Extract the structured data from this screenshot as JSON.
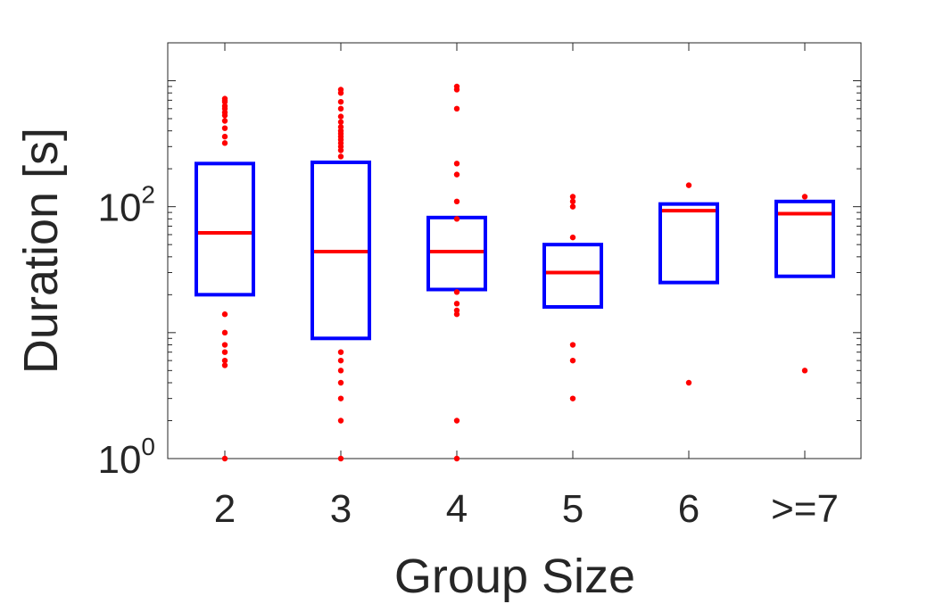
{
  "chart_data": {
    "type": "box",
    "xlabel": "Group Size",
    "ylabel": "Duration [s]",
    "y_scale": "log",
    "ylim": [
      1,
      2000
    ],
    "categories": [
      "2",
      "3",
      "4",
      "5",
      "6",
      ">=7"
    ],
    "y_ticks": [
      {
        "value": 1,
        "base": "10",
        "exp": "0"
      },
      {
        "value": 100,
        "base": "10",
        "exp": "2"
      }
    ],
    "boxes": [
      {
        "category": "2",
        "q1": 20,
        "median": 62,
        "q3": 220,
        "outliers": [
          1,
          5.5,
          6,
          7,
          8,
          10,
          14,
          320,
          360,
          420,
          480,
          530,
          560,
          600,
          630,
          680,
          700,
          720
        ]
      },
      {
        "category": "3",
        "q1": 9,
        "median": 44,
        "q3": 225,
        "outliers": [
          1,
          2,
          3,
          4,
          5,
          6,
          7,
          250,
          280,
          300,
          320,
          340,
          360,
          380,
          400,
          430,
          470,
          520,
          600,
          680,
          800,
          850
        ]
      },
      {
        "category": "4",
        "q1": 22,
        "median": 44,
        "q3": 82,
        "outliers": [
          1,
          2,
          14,
          15,
          17,
          21,
          80,
          110,
          180,
          220,
          600,
          850,
          900
        ]
      },
      {
        "category": "5",
        "q1": 16,
        "median": 30,
        "q3": 50,
        "outliers": [
          3,
          6,
          8,
          57,
          100,
          110,
          120
        ]
      },
      {
        "category": "6",
        "q1": 25,
        "median": 93,
        "q3": 105,
        "outliers": [
          4,
          148
        ]
      },
      {
        "category": ">=7",
        "q1": 28,
        "median": 88,
        "q3": 110,
        "outliers": [
          5,
          120
        ]
      }
    ],
    "grid": false,
    "colors": {
      "box": "#0000ff",
      "median": "#ff0000",
      "outlier": "#ff0000",
      "axis": "#262626"
    }
  }
}
